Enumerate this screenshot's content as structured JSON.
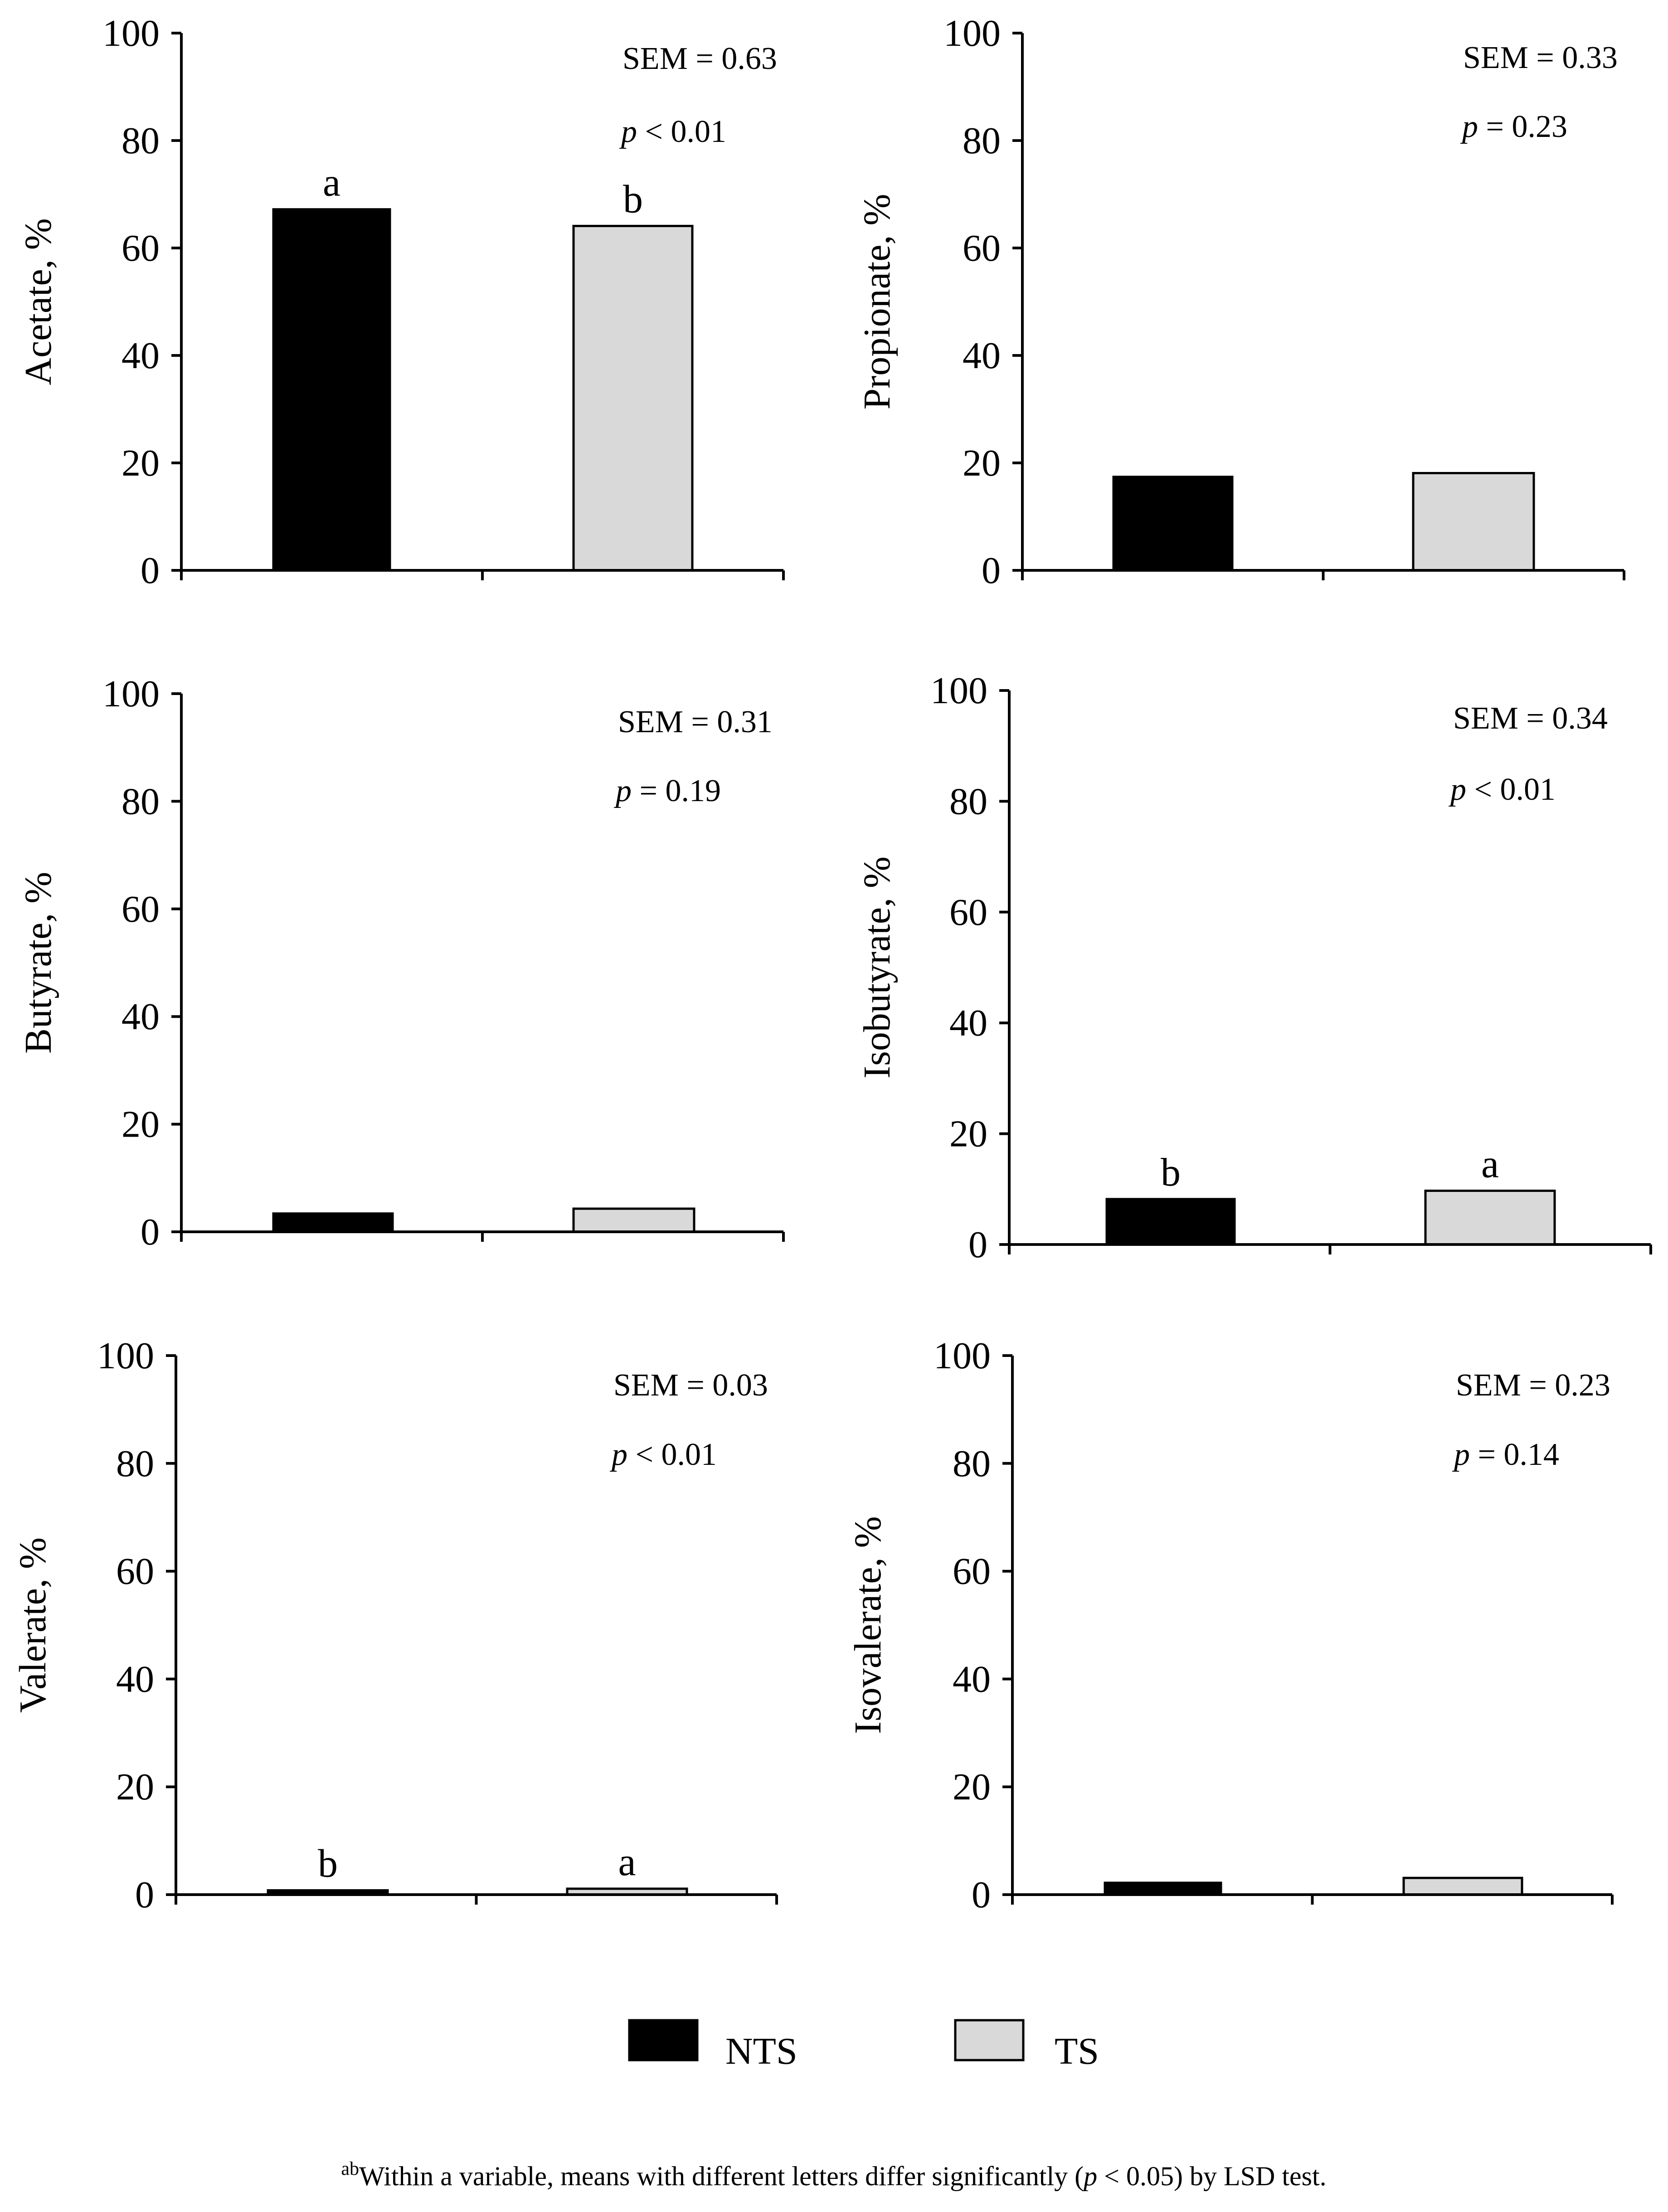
{
  "colors": {
    "NTS": "#000000",
    "TS": "#d9d9d9",
    "axis": "#000000"
  },
  "legend": {
    "items": [
      {
        "label": "NTS",
        "color": "#000000"
      },
      {
        "label": "TS",
        "color": "#d9d9d9"
      }
    ]
  },
  "footnote": {
    "superscript": "ab",
    "text_before_p": "Within a variable, means with different letters differ significantly  (",
    "p_italic": "p",
    "text_after_p": " < 0.05)  by LSD test."
  },
  "chart_data": [
    {
      "type": "bar",
      "title": "",
      "ylabel": "Acetate,  %",
      "xlabel": "",
      "ylim": [
        0,
        100
      ],
      "yticks": [
        0,
        20,
        40,
        60,
        80,
        100
      ],
      "categories": [
        "NTS",
        "TS"
      ],
      "values": [
        67.2,
        64.1
      ],
      "letters": [
        "a",
        "b"
      ],
      "sem_text": "SEM = 0.63",
      "p_text": " < 0.01"
    },
    {
      "type": "bar",
      "title": "",
      "ylabel": "Propionate,  %",
      "xlabel": "",
      "ylim": [
        0,
        100
      ],
      "yticks": [
        0,
        20,
        40,
        60,
        80,
        100
      ],
      "categories": [
        "NTS",
        "TS"
      ],
      "values": [
        17.4,
        18.1
      ],
      "letters": [
        "",
        ""
      ],
      "sem_text": "SEM = 0.33",
      "p_text": " = 0.23"
    },
    {
      "type": "bar",
      "title": "",
      "ylabel": "Butyrate,  %",
      "xlabel": "",
      "ylim": [
        0,
        100
      ],
      "yticks": [
        0,
        20,
        40,
        60,
        80,
        100
      ],
      "categories": [
        "NTS",
        "TS"
      ],
      "values": [
        3.4,
        4.3
      ],
      "letters": [
        "",
        ""
      ],
      "sem_text": "SEM = 0.31",
      "p_text": " = 0.19"
    },
    {
      "type": "bar",
      "title": "",
      "ylabel": "Isobutyrate,  %",
      "xlabel": "",
      "ylim": [
        0,
        100
      ],
      "yticks": [
        0,
        20,
        40,
        60,
        80,
        100
      ],
      "categories": [
        "NTS",
        "TS"
      ],
      "values": [
        8.2,
        9.7
      ],
      "letters": [
        "b",
        "a"
      ],
      "sem_text": "SEM = 0.34",
      "p_text": " < 0.01"
    },
    {
      "type": "bar",
      "title": "",
      "ylabel": "Valerate,  %",
      "xlabel": "",
      "ylim": [
        0,
        100
      ],
      "yticks": [
        0,
        20,
        40,
        60,
        80,
        100
      ],
      "categories": [
        "NTS",
        "TS"
      ],
      "values": [
        0.8,
        1.1
      ],
      "letters": [
        "b",
        "a"
      ],
      "sem_text": "SEM = 0.03",
      "p_text": " < 0.01"
    },
    {
      "type": "bar",
      "title": "",
      "ylabel": "Isovalerate,  %",
      "xlabel": "",
      "ylim": [
        0,
        100
      ],
      "yticks": [
        0,
        20,
        40,
        60,
        80,
        100
      ],
      "categories": [
        "NTS",
        "TS"
      ],
      "values": [
        2.2,
        3.1
      ],
      "letters": [
        "",
        ""
      ],
      "sem_text": "SEM = 0.23",
      "p_text": " = 0.14"
    }
  ]
}
